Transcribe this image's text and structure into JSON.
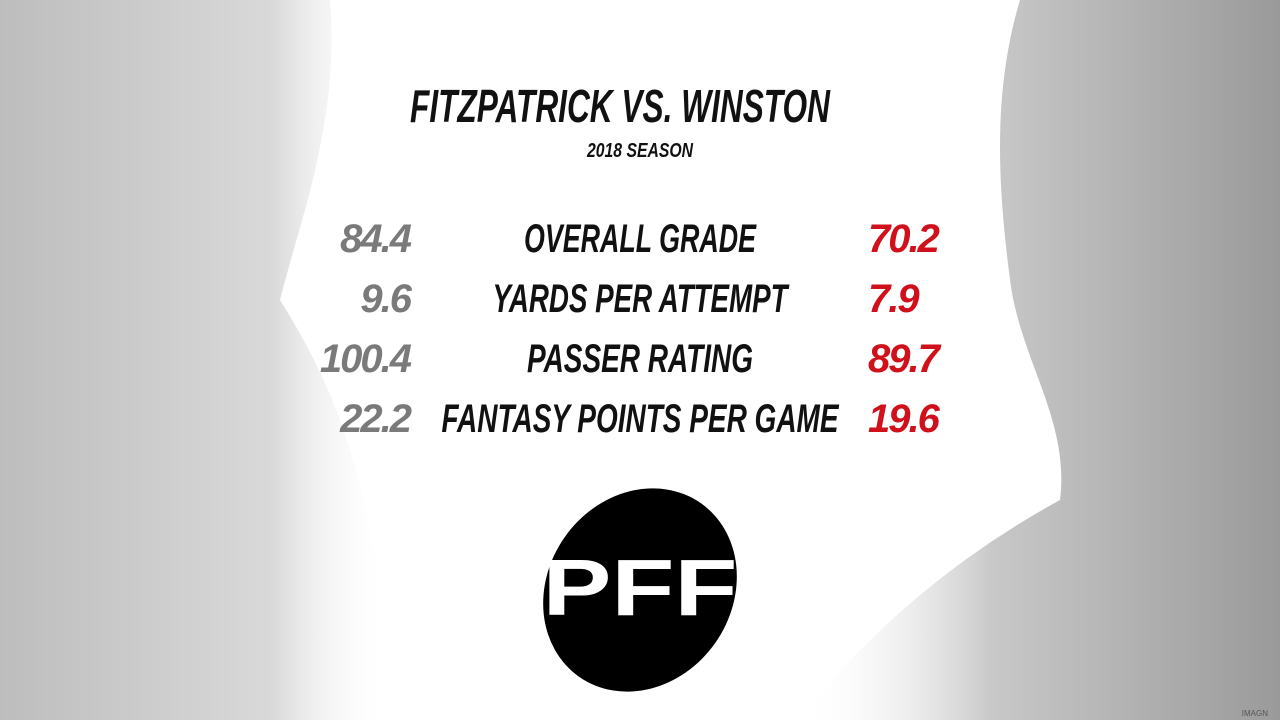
{
  "header": {
    "title": "FITZPATRICK VS. WINSTON",
    "subtitle": "2018 SEASON"
  },
  "table": {
    "rows": [
      [
        "84.4",
        "OVERALL GRADE",
        "70.2"
      ],
      [
        "9.6",
        "YARDS PER ATTEMPT",
        "7.9"
      ],
      [
        "100.4",
        "PASSER RATING",
        "89.7"
      ],
      [
        "22.2",
        "FANTASY POINTS PER GAME",
        "19.6"
      ]
    ]
  },
  "logo": "PFF",
  "credit": "IMAGN"
}
